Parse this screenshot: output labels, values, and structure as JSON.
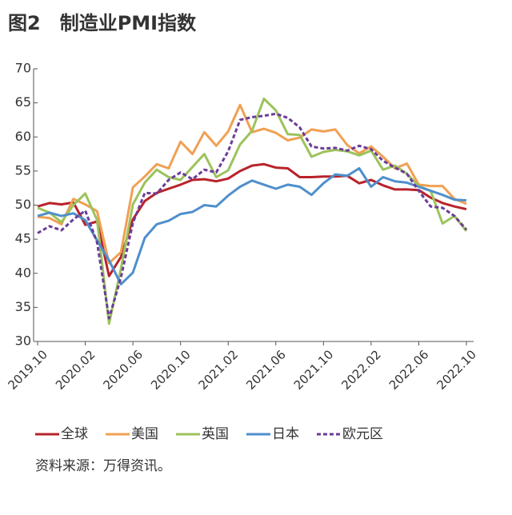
{
  "chart_data": {
    "type": "line",
    "title": "图2　制造业PMI指数",
    "categories": [
      "2019.10",
      null,
      null,
      null,
      "2020.02",
      null,
      null,
      null,
      "2020.06",
      null,
      null,
      null,
      "2020.10",
      null,
      null,
      null,
      "2021.02",
      null,
      null,
      null,
      "2021.06",
      null,
      null,
      null,
      "2021.10",
      null,
      null,
      null,
      "2022.02",
      null,
      null,
      null,
      "2022.06",
      null,
      null,
      null,
      "2022.10"
    ],
    "ylim": [
      30,
      70
    ],
    "yticks": [
      30,
      35,
      40,
      45,
      50,
      55,
      60,
      65,
      70
    ],
    "series": [
      {
        "name": "全球",
        "color": "#b8232b",
        "dashed": false,
        "values": [
          49.8,
          50.3,
          50.1,
          50.4,
          47.1,
          47.6,
          39.6,
          42.4,
          47.9,
          50.6,
          51.8,
          52.4,
          53.0,
          53.7,
          53.8,
          53.5,
          53.9,
          55.0,
          55.8,
          56.0,
          55.5,
          55.4,
          54.1,
          54.1,
          54.2,
          54.2,
          54.3,
          53.2,
          53.7,
          52.9,
          52.3,
          52.3,
          52.2,
          51.1,
          50.3,
          49.8,
          49.4
        ]
      },
      {
        "name": "美国",
        "color": "#f0a053",
        "dashed": false,
        "values": [
          48.3,
          48.1,
          47.2,
          50.9,
          50.1,
          49.1,
          41.5,
          43.1,
          52.6,
          54.2,
          56.0,
          55.4,
          59.3,
          57.5,
          60.7,
          58.7,
          60.8,
          64.7,
          60.7,
          61.2,
          60.6,
          59.5,
          59.9,
          61.1,
          60.8,
          61.1,
          58.8,
          57.6,
          58.6,
          57.1,
          55.4,
          56.1,
          53.0,
          52.8,
          52.8,
          50.9,
          50.2
        ]
      },
      {
        "name": "英国",
        "color": "#9cc35c",
        "dashed": false,
        "values": [
          49.6,
          48.9,
          47.5,
          50.0,
          51.7,
          47.8,
          32.6,
          40.7,
          50.1,
          53.3,
          55.2,
          54.1,
          53.7,
          55.6,
          57.5,
          54.1,
          55.1,
          58.9,
          60.9,
          65.6,
          63.9,
          60.4,
          60.3,
          57.1,
          57.8,
          58.1,
          57.9,
          57.3,
          58.0,
          55.2,
          55.8,
          54.6,
          52.8,
          52.1,
          47.3,
          48.4,
          46.2
        ]
      },
      {
        "name": "日本",
        "color": "#4f8fcc",
        "dashed": false,
        "values": [
          48.4,
          48.9,
          48.4,
          48.8,
          47.8,
          44.8,
          41.9,
          38.4,
          40.1,
          45.2,
          47.2,
          47.7,
          48.7,
          49.0,
          50.0,
          49.8,
          51.4,
          52.7,
          53.6,
          53.0,
          52.4,
          53.0,
          52.7,
          51.5,
          53.2,
          54.5,
          54.3,
          55.4,
          52.7,
          54.1,
          53.5,
          53.3,
          52.7,
          52.1,
          51.5,
          50.8,
          50.7
        ]
      },
      {
        "name": "欧元区",
        "color": "#6b3d98",
        "dashed": true,
        "values": [
          45.9,
          46.9,
          46.3,
          47.9,
          49.2,
          44.5,
          33.4,
          39.4,
          47.4,
          51.8,
          51.7,
          53.7,
          54.8,
          53.8,
          55.2,
          54.8,
          57.9,
          62.5,
          62.9,
          63.1,
          63.4,
          62.8,
          61.4,
          58.6,
          58.3,
          58.4,
          58.0,
          58.7,
          58.2,
          56.5,
          55.5,
          54.6,
          52.1,
          49.8,
          49.6,
          48.4,
          46.4
        ]
      }
    ],
    "source": "资料来源：万得资讯。"
  }
}
